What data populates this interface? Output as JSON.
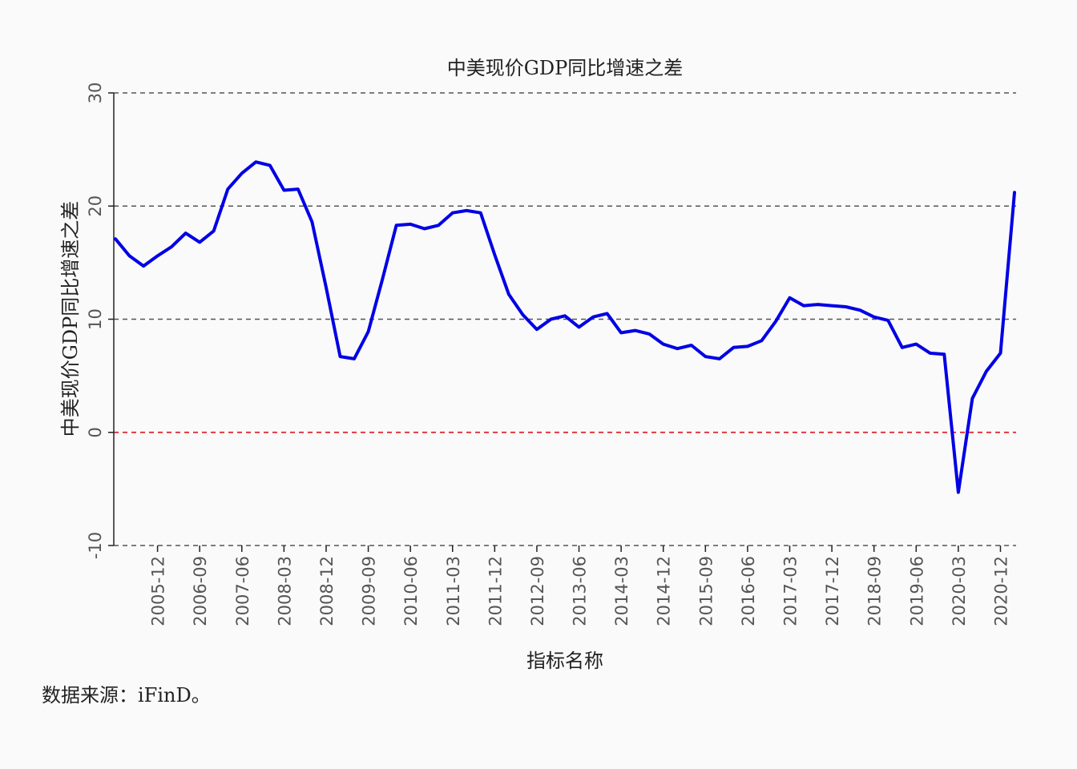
{
  "chart_data": {
    "type": "line",
    "title": "中美现价GDP同比增速之差",
    "xlabel": "指标名称",
    "ylabel": "中美现价GDP同比增速之差",
    "source": "数据来源：iFinD。",
    "ylim": [
      -10,
      30
    ],
    "yticks": [
      -10,
      0,
      10,
      20,
      30
    ],
    "grid_values": [
      10,
      20,
      30
    ],
    "reference_line": 0,
    "grid": true,
    "legend": "none",
    "colors": {
      "series": "#0000e6",
      "grid": "#555555",
      "reference": "#e0202a",
      "axis": "#222222"
    },
    "xtick_labels": [
      "2005-12",
      "2006-09",
      "2007-06",
      "2008-03",
      "2008-12",
      "2009-09",
      "2010-06",
      "2011-03",
      "2011-12",
      "2012-09",
      "2013-06",
      "2014-03",
      "2014-12",
      "2015-09",
      "2016-06",
      "2017-03",
      "2017-12",
      "2018-09",
      "2019-06",
      "2020-03",
      "2020-12"
    ],
    "x": [
      "2005-03",
      "2005-06",
      "2005-09",
      "2005-12",
      "2006-03",
      "2006-06",
      "2006-09",
      "2006-12",
      "2007-03",
      "2007-06",
      "2007-09",
      "2007-12",
      "2008-03",
      "2008-06",
      "2008-09",
      "2008-12",
      "2009-03",
      "2009-06",
      "2009-09",
      "2009-12",
      "2010-03",
      "2010-06",
      "2010-09",
      "2010-12",
      "2011-03",
      "2011-06",
      "2011-09",
      "2011-12",
      "2012-03",
      "2012-06",
      "2012-09",
      "2012-12",
      "2013-03",
      "2013-06",
      "2013-09",
      "2013-12",
      "2014-03",
      "2014-06",
      "2014-09",
      "2014-12",
      "2015-03",
      "2015-06",
      "2015-09",
      "2015-12",
      "2016-03",
      "2016-06",
      "2016-09",
      "2016-12",
      "2017-03",
      "2017-06",
      "2017-09",
      "2017-12",
      "2018-03",
      "2018-06",
      "2018-09",
      "2018-12",
      "2019-03",
      "2019-06",
      "2019-09",
      "2019-12",
      "2020-03",
      "2020-06",
      "2020-09",
      "2020-12",
      "2021-03"
    ],
    "series": [
      {
        "values": [
          17.1,
          15.6,
          14.7,
          15.6,
          16.4,
          17.6,
          16.8,
          17.8,
          21.5,
          22.9,
          23.9,
          23.6,
          21.4,
          21.5,
          18.6,
          12.8,
          6.7,
          6.5,
          8.9,
          13.5,
          18.3,
          18.4,
          18.0,
          18.3,
          19.4,
          19.6,
          19.4,
          15.7,
          12.2,
          10.4,
          9.1,
          10.0,
          10.3,
          9.3,
          10.2,
          10.5,
          8.8,
          9.0,
          8.7,
          7.8,
          7.4,
          7.7,
          6.7,
          6.5,
          7.5,
          7.6,
          8.1,
          9.8,
          11.9,
          11.2,
          11.3,
          11.2,
          11.1,
          10.8,
          10.2,
          9.9,
          7.5,
          7.8,
          7.0,
          6.9,
          -5.3,
          3.0,
          5.4,
          7.0,
          21.2
        ]
      }
    ]
  }
}
